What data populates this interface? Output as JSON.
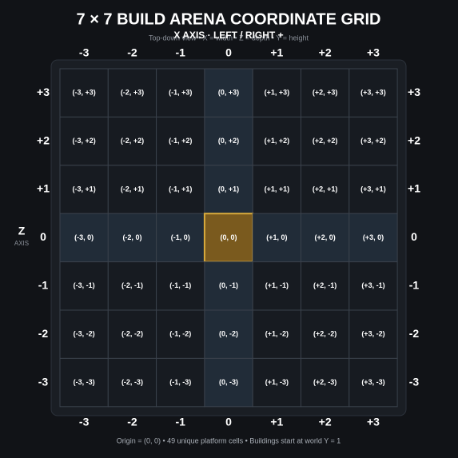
{
  "header": {
    "title": "7 × 7 BUILD ARENA COORDINATE GRID",
    "subtitle": "Top-down view • X = width • Z = depth • Y = height",
    "x_axis_label": "X AXIS · LEFT / RIGHT +"
  },
  "z_axis": {
    "label": "Z",
    "sublabel": "AXIS"
  },
  "columns": [
    "-3",
    "-2",
    "-1",
    "0",
    "+1",
    "+2",
    "+3"
  ],
  "rows": [
    "+3",
    "+2",
    "+1",
    "0",
    "-1",
    "-2",
    "-3"
  ],
  "cells": [
    [
      "(-3, +3)",
      "(-2, +3)",
      "(-1, +3)",
      "(0, +3)",
      "(+1, +3)",
      "(+2, +3)",
      "(+3, +3)"
    ],
    [
      "(-3, +2)",
      "(-2, +2)",
      "(-1, +2)",
      "(0, +2)",
      "(+1, +2)",
      "(+2, +2)",
      "(+3, +2)"
    ],
    [
      "(-3, +1)",
      "(-2, +1)",
      "(-1, +1)",
      "(0, +1)",
      "(+1, +1)",
      "(+2, +1)",
      "(+3, +1)"
    ],
    [
      "(-3, 0)",
      "(-2, 0)",
      "(-1, 0)",
      "(0, 0)",
      "(+1, 0)",
      "(+2, 0)",
      "(+3, 0)"
    ],
    [
      "(-3, -1)",
      "(-2, -1)",
      "(-1, -1)",
      "(0, -1)",
      "(+1, -1)",
      "(+2, -1)",
      "(+3, -1)"
    ],
    [
      "(-3, -2)",
      "(-2, -2)",
      "(-1, -2)",
      "(0, -2)",
      "(+1, -2)",
      "(+2, -2)",
      "(+3, -2)"
    ],
    [
      "(-3, -3)",
      "(-2, -3)",
      "(-1, -3)",
      "(0, -3)",
      "(+1, -3)",
      "(+2, -3)",
      "(+3, -3)"
    ]
  ],
  "footer": "Origin = (0, 0) • 49 unique platform cells • Buildings start at world Y = 1"
}
